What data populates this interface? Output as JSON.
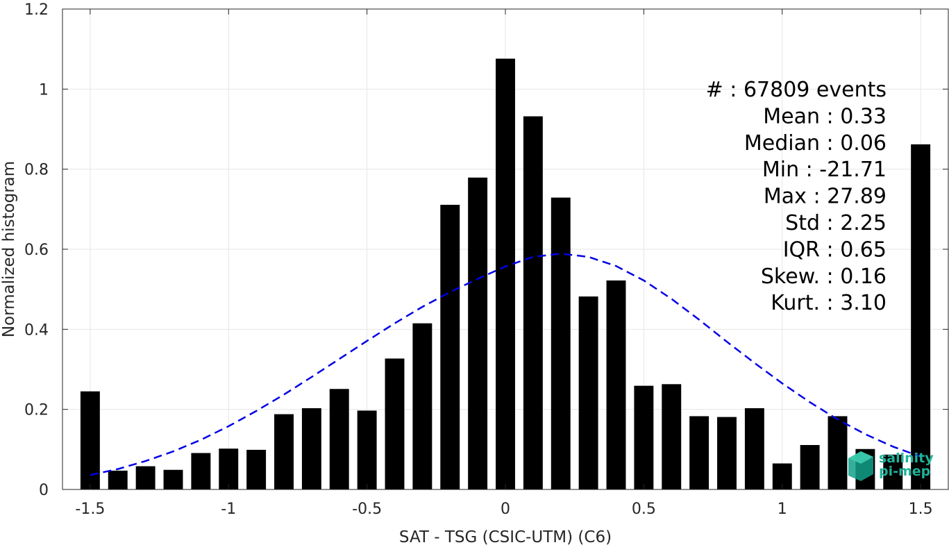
{
  "chart_data": {
    "type": "bar",
    "xlabel": "SAT - TSG (CSIC-UTM) (C6)",
    "ylabel": "Normalized histogram",
    "xlim": [
      -1.6,
      1.6
    ],
    "ylim": [
      0,
      1.2
    ],
    "xticks": [
      -1.5,
      -1,
      -0.5,
      0,
      0.5,
      1,
      1.5
    ],
    "xtick_labels": [
      "-1.5",
      "-1",
      "-0.5",
      "0",
      "0.5",
      "1",
      "1.5"
    ],
    "yticks": [
      0,
      0.2,
      0.4,
      0.6,
      0.8,
      1,
      1.2
    ],
    "ytick_labels": [
      "0",
      "0.2",
      "0.4",
      "0.6",
      "0.8",
      "1",
      "1.2"
    ],
    "grid": true,
    "bar_width": 0.07,
    "x": [
      -1.5,
      -1.4,
      -1.3,
      -1.2,
      -1.1,
      -1.0,
      -0.9,
      -0.8,
      -0.7,
      -0.6,
      -0.5,
      -0.4,
      -0.3,
      -0.2,
      -0.1,
      0.0,
      0.1,
      0.2,
      0.3,
      0.4,
      0.5,
      0.6,
      0.7,
      0.8,
      0.9,
      1.0,
      1.1,
      1.2,
      1.3,
      1.4,
      1.5
    ],
    "values": [
      0.245,
      0.047,
      0.058,
      0.049,
      0.091,
      0.102,
      0.099,
      0.188,
      0.203,
      0.251,
      0.197,
      0.327,
      0.415,
      0.711,
      0.779,
      1.076,
      0.932,
      0.729,
      0.482,
      0.522,
      0.259,
      0.263,
      0.183,
      0.181,
      0.203,
      0.065,
      0.111,
      0.183,
      0.101,
      0.087,
      0.862
    ],
    "bar_color": "#000000",
    "fit_curve": {
      "style": "dashed",
      "color": "#0000e6",
      "x": [
        -1.5,
        -1.4,
        -1.3,
        -1.2,
        -1.1,
        -1.0,
        -0.9,
        -0.8,
        -0.7,
        -0.6,
        -0.5,
        -0.4,
        -0.3,
        -0.2,
        -0.1,
        0.0,
        0.1,
        0.2,
        0.3,
        0.4,
        0.5,
        0.6,
        0.7,
        0.8,
        0.9,
        1.0,
        1.1,
        1.2,
        1.3,
        1.4,
        1.5
      ],
      "y": [
        0.036,
        0.051,
        0.071,
        0.095,
        0.124,
        0.158,
        0.196,
        0.237,
        0.281,
        0.326,
        0.371,
        0.415,
        0.456,
        0.493,
        0.526,
        0.557,
        0.581,
        0.589,
        0.581,
        0.558,
        0.522,
        0.476,
        0.424,
        0.369,
        0.316,
        0.265,
        0.218,
        0.175,
        0.138,
        0.107,
        0.082
      ]
    },
    "stats_lines": [
      "#  : 67809 events",
      "Mean : 0.33",
      "Median : 0.06",
      "Min : -21.71",
      "Max : 27.89",
      "Std : 2.25",
      "IQR : 0.65",
      "Skew. : 0.16",
      "Kurt. : 3.10"
    ],
    "stats_placement": "top-right",
    "logo": {
      "line1": "salinity",
      "line2": "pi-mep",
      "color": "#1fb39a"
    }
  }
}
